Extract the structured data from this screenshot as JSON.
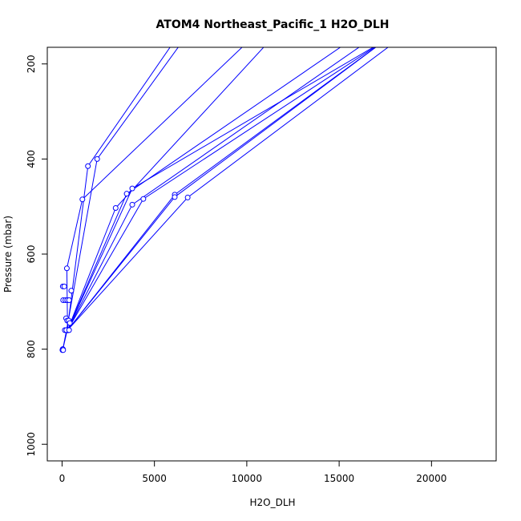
{
  "chart_data": {
    "type": "line",
    "title": "ATOM4 Northeast_Pacific_1 H2O_DLH",
    "xlabel": "H2O_DLH",
    "ylabel": "Pressure (mbar)",
    "xlim": [
      -800,
      23500
    ],
    "ylim": [
      1035,
      165
    ],
    "y_reversed": true,
    "x_ticks": [
      0,
      5000,
      10000,
      15000,
      20000
    ],
    "y_ticks": [
      200,
      400,
      600,
      800,
      1000
    ],
    "grid": false,
    "legend": "none",
    "color": "#0000ff",
    "series": [
      {
        "values": [
          [
            40,
            800
          ],
          [
            280,
            760
          ],
          [
            1400,
            415
          ],
          [
            7000,
            100
          ]
        ]
      },
      {
        "values": [
          [
            40,
            800
          ],
          [
            240,
            760
          ],
          [
            1900,
            400
          ],
          [
            7500,
            100
          ]
        ]
      },
      {
        "values": [
          [
            300,
            760
          ],
          [
            260,
            630
          ],
          [
            1100,
            485
          ],
          [
            11500,
            100
          ]
        ]
      },
      {
        "values": [
          [
            300,
            760
          ],
          [
            2900,
            503
          ],
          [
            11500,
            140
          ]
        ]
      },
      {
        "values": [
          [
            300,
            760
          ],
          [
            3500,
            473
          ],
          [
            16000,
            140
          ]
        ]
      },
      {
        "values": [
          [
            300,
            760
          ],
          [
            3800,
            462
          ],
          [
            17500,
            150
          ]
        ]
      },
      {
        "values": [
          [
            300,
            760
          ],
          [
            3800,
            496
          ],
          [
            17000,
            140
          ]
        ]
      },
      {
        "values": [
          [
            300,
            760
          ],
          [
            4400,
            484
          ],
          [
            17500,
            150
          ]
        ]
      },
      {
        "values": [
          [
            300,
            760
          ],
          [
            6100,
            475
          ],
          [
            17500,
            150
          ]
        ]
      },
      {
        "values": [
          [
            300,
            760
          ],
          [
            6100,
            480
          ],
          [
            17500,
            150
          ]
        ]
      },
      {
        "values": [
          [
            300,
            760
          ],
          [
            6800,
            481
          ],
          [
            18500,
            140
          ]
        ]
      }
    ],
    "extra_points": [
      [
        40,
        668
      ],
      [
        120,
        668
      ],
      [
        60,
        697
      ],
      [
        180,
        697
      ],
      [
        280,
        697
      ],
      [
        380,
        697
      ],
      [
        500,
        677
      ],
      [
        220,
        735
      ],
      [
        280,
        740
      ],
      [
        360,
        740
      ],
      [
        420,
        745
      ],
      [
        150,
        760
      ],
      [
        230,
        760
      ],
      [
        380,
        760
      ],
      [
        20,
        802
      ],
      [
        60,
        802
      ]
    ]
  }
}
